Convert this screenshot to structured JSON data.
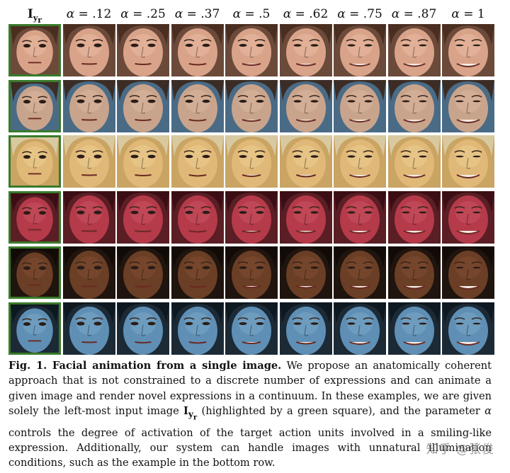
{
  "header": {
    "input_label": "I",
    "input_sub": "y",
    "input_subsub": "r",
    "alpha_labels": [
      "α = .12",
      "α = .25",
      "α = .37",
      "α = .5",
      "α = .62",
      "α = .75",
      "α = .87",
      "α = 1"
    ]
  },
  "rows": [
    {
      "name": "row-young-woman",
      "skin": "#d9a38a",
      "bg": "#6b4a3a",
      "hair": "#4a2e20",
      "highlight": "#f0c8b0"
    },
    {
      "name": "row-man-stubble",
      "skin": "#c9a48c",
      "bg": "#4a6b86",
      "hair": "#3b2d25",
      "highlight": "#e4c2a8"
    },
    {
      "name": "row-man-glasses",
      "skin": "#e0b878",
      "bg": "#c9a463",
      "hair": "#d8c9a0",
      "highlight": "#f2d9a0"
    },
    {
      "name": "row-red-face",
      "skin": "#b53a4a",
      "bg": "#5a1e24",
      "hair": "#3a0e14",
      "highlight": "#d2606c"
    },
    {
      "name": "row-dark-man",
      "skin": "#6b3e26",
      "bg": "#1f140e",
      "hair": "#120a06",
      "highlight": "#8a5638"
    },
    {
      "name": "row-blue-avatar",
      "skin": "#5f8fb5",
      "bg": "#1c2a36",
      "hair": "#0e1820",
      "highlight": "#8ab4d2"
    }
  ],
  "caption": {
    "title": "Fig. 1. Facial animation from a single image.",
    "text_1": " We propose an anatomically coherent approach that is not constrained to a discrete number of expressions and can animate a given image and render novel expressions in a continuum. In these examples, we are given solely the left-most input image ",
    "iyr": "I",
    "iyr_sub": "y",
    "iyr_subsub": "r",
    "text_2": " (highlighted by a green square), and the parameter ",
    "alpha": "α",
    "text_3": " controls the degree of activation of the target action units involved in a smiling-like expression. Additionally, our system can handle images with unnatural illumination conditions, such as the example in the bottom row."
  },
  "watermark": "知乎 @张俊"
}
